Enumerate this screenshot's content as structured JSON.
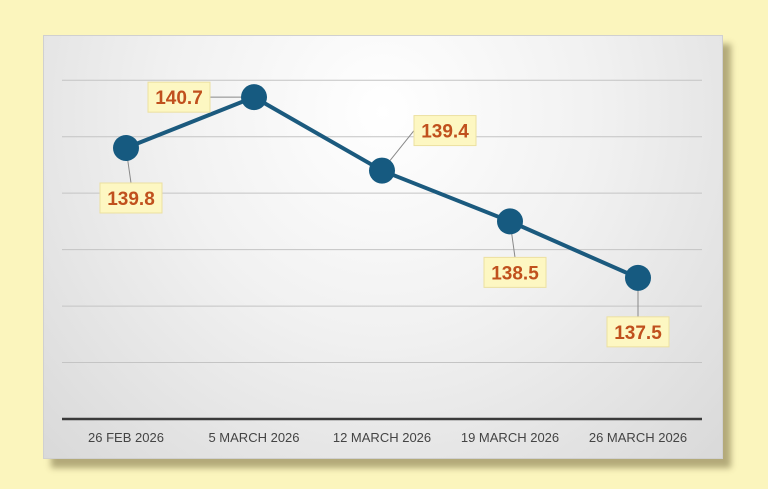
{
  "chart_data": {
    "type": "line",
    "title": "",
    "xlabel": "",
    "ylabel": "",
    "categories": [
      "26 FEB 2026",
      "5 MARCH 2026",
      "12 MARCH 2026",
      "19 MARCH 2026",
      "26 MARCH 2026"
    ],
    "series": [
      {
        "values": [
          139.8,
          140.7,
          139.4,
          138.5,
          137.5
        ]
      }
    ],
    "data_labels": [
      "139.8",
      "140.7",
      "139.4",
      "138.5",
      "137.5"
    ],
    "ylim": [
      135,
      141.5
    ],
    "gridlines": true,
    "legend": "none",
    "colors": {
      "line": "#1b5a7e",
      "marker": "#165a80",
      "label_text": "#c0501d",
      "label_bg": "#fdf7c2",
      "page_bg": "#fbf5bd"
    }
  }
}
